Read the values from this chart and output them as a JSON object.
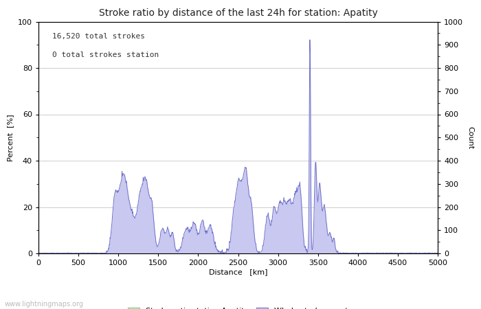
{
  "title": "Stroke ratio by distance of the last 24h for station: Apatity",
  "xlabel": "Distance   [km]",
  "ylabel_left": "Percent  [%]",
  "ylabel_right": "Count",
  "annotation_line1": "16,520 total strokes",
  "annotation_line2": "0 total strokes station",
  "xlim": [
    0,
    5000
  ],
  "ylim_left": [
    0,
    100
  ],
  "ylim_right": [
    0,
    1000
  ],
  "xticks": [
    0,
    500,
    1000,
    1500,
    2000,
    2500,
    3000,
    3500,
    4000,
    4500,
    5000
  ],
  "yticks_left": [
    0,
    20,
    40,
    60,
    80,
    100
  ],
  "yticks_right": [
    0,
    100,
    200,
    300,
    400,
    500,
    600,
    700,
    800,
    900,
    1000
  ],
  "legend_label_green": "Stroke ratio station Apatity",
  "legend_label_blue": "Whole stroke count",
  "fill_color_green": "#c8f0c8",
  "fill_color_blue": "#c8c8f0",
  "line_color": "#7070cc",
  "background_color": "#ffffff",
  "grid_color": "#cccccc",
  "watermark": "www.lightningmaps.org",
  "watermark_color": "#bbbbbb",
  "figsize": [
    7.0,
    4.5
  ],
  "dpi": 100
}
